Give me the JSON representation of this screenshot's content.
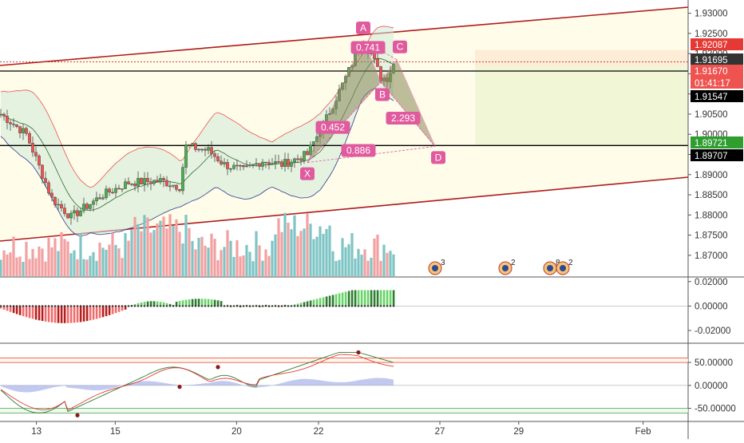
{
  "chart_data": {
    "type": "candlestick",
    "panels": [
      {
        "id": "price",
        "y_ticks": [
          "1.93000",
          "1.92500",
          "1.92000",
          "1.91500",
          "1.91000",
          "1.90500",
          "1.90000",
          "1.89500",
          "1.89000",
          "1.88500",
          "1.88000",
          "1.87500",
          "1.87000"
        ],
        "ylim": [
          1.8675,
          1.9315
        ],
        "price_labels": [
          {
            "text": "1.92087",
            "value": 1.92087,
            "color": "#e53935"
          },
          {
            "text": "1.91695",
            "value": 1.91695,
            "color": "#333333"
          },
          {
            "text": "1.91670",
            "value": 1.9167,
            "color": "#ef5350"
          },
          {
            "text": "01:41:17",
            "value": 1.91615,
            "color": "#ef5350"
          },
          {
            "text": "1.91547",
            "value": 1.91547,
            "color": "#000000"
          },
          {
            "text": "1.89721",
            "value": 1.89721,
            "color": "#2e9e2e"
          },
          {
            "text": "1.89707",
            "value": 1.89707,
            "color": "#000000"
          }
        ],
        "harmonic_pattern": {
          "points": [
            {
              "label": "X",
              "x": 96,
              "y": 1.893
            },
            {
              "label": "A",
              "x": 113.5,
              "y": 1.9232
            },
            {
              "label": "B",
              "x": 119,
              "y": 1.913
            },
            {
              "label": "C",
              "x": 124,
              "y": 1.9185
            },
            {
              "label": "D",
              "x": 136,
              "y": 1.897
            }
          ],
          "ratios": [
            "0.741",
            "0.452",
            "2.293",
            "0.886"
          ]
        },
        "position": {
          "entry": 1.91695,
          "stop": 1.92087,
          "target": 1.89721
        }
      },
      {
        "id": "macd",
        "y_ticks": [
          "0.02000",
          "0.00000",
          "-0.02000"
        ],
        "ylim": [
          -0.0265,
          0.0205
        ]
      },
      {
        "id": "oscillator",
        "y_ticks": [
          "50.00000",
          "0.00000",
          "-50.00000"
        ],
        "ylim": [
          -75,
          85
        ],
        "levels": [
          60,
          50,
          -50,
          -60
        ]
      }
    ],
    "x_ticks": [
      {
        "label": "13",
        "x": 12
      },
      {
        "label": "15",
        "x": 38
      },
      {
        "label": "20",
        "x": 78
      },
      {
        "label": "22",
        "x": 105
      },
      {
        "label": "27",
        "x": 145
      },
      {
        "label": "29",
        "x": 171
      },
      {
        "label": "Feb",
        "x": 212
      }
    ],
    "events": [
      {
        "count": "3",
        "x": 136
      },
      {
        "count": "2",
        "x": 158
      },
      {
        "count": "8",
        "x": 172
      },
      {
        "count": "2",
        "x": 176
      }
    ],
    "grid": false,
    "colors": {
      "up": "#4caf50",
      "down": "#ef5350",
      "vol_up": "#7fc4c4",
      "vol_down": "#f2a0a0",
      "pattern": "#e05a9e",
      "channel": "#b01c1c",
      "bb": "#2a3b8f"
    }
  }
}
